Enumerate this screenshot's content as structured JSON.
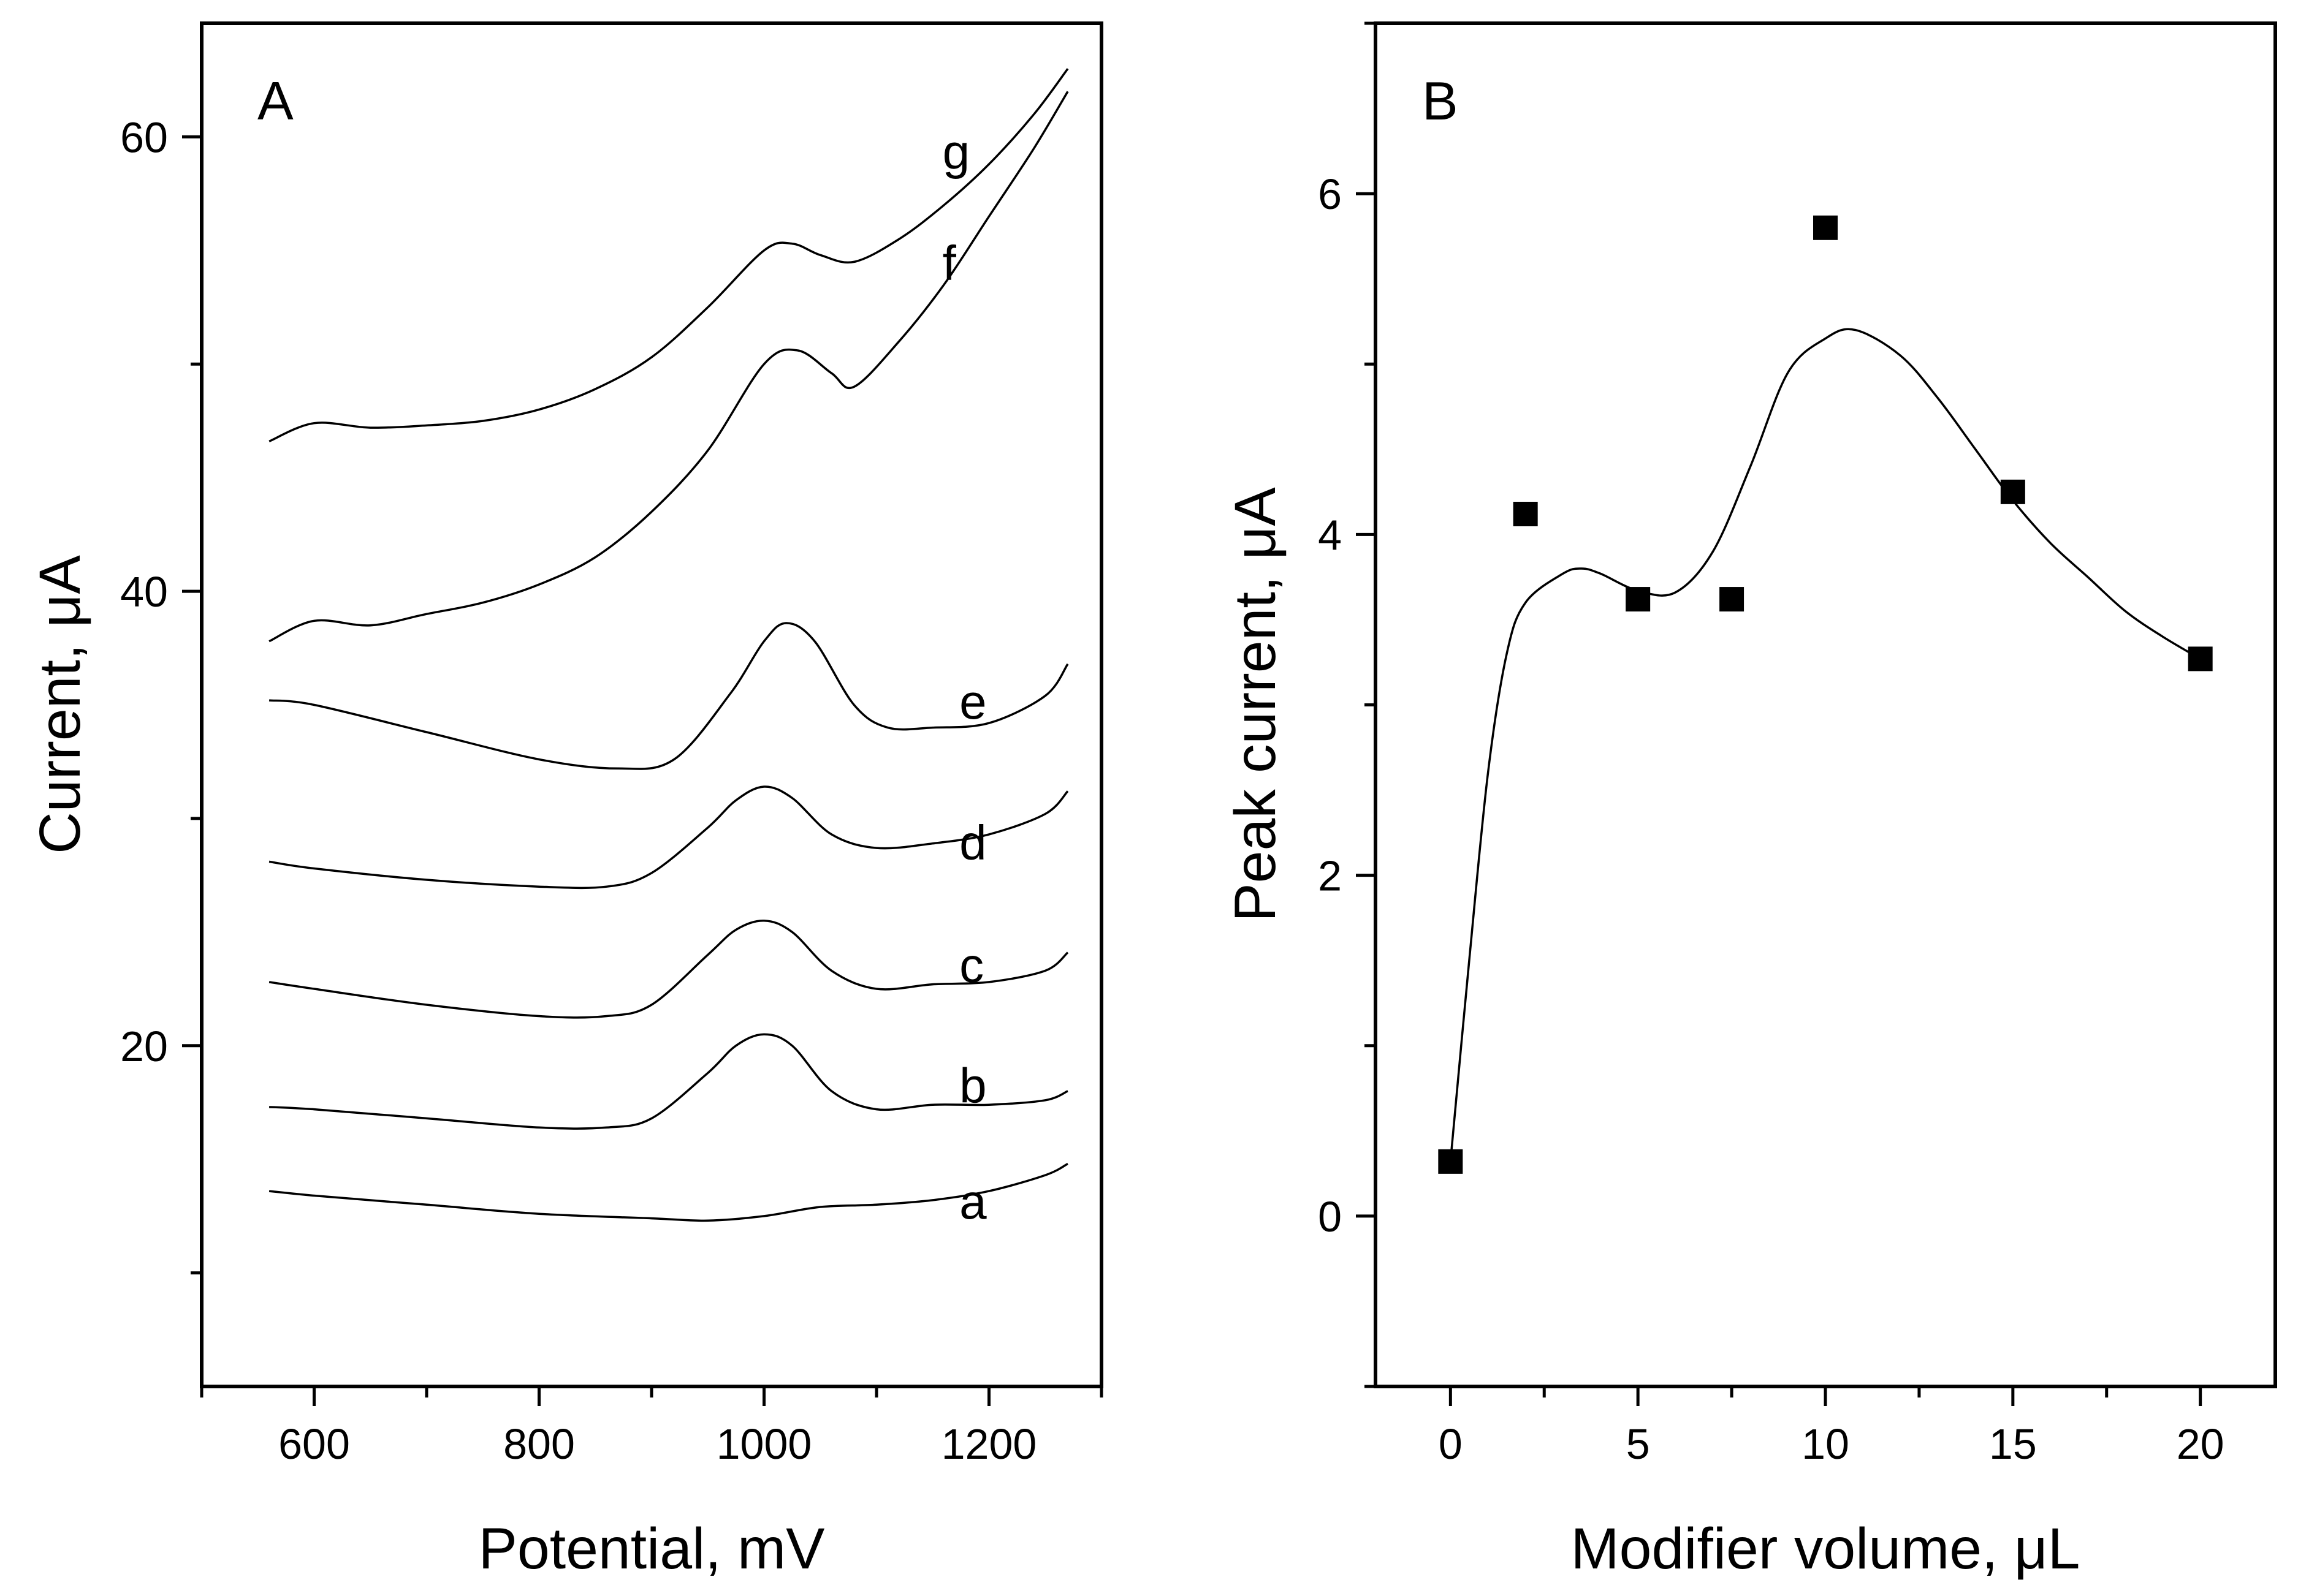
{
  "chart_data": [
    {
      "panel": "A",
      "type": "line",
      "xlabel": "Potential, mV",
      "ylabel": "Current, μA",
      "xlim": [
        500,
        1300
      ],
      "ylim": [
        5,
        65
      ],
      "xticks": [
        600,
        800,
        1000,
        1200
      ],
      "yticks": [
        20,
        40,
        60
      ],
      "series": [
        {
          "name": "a",
          "x": [
            560,
            600,
            700,
            800,
            900,
            950,
            1000,
            1050,
            1100,
            1150,
            1200,
            1250,
            1270
          ],
          "y": [
            13.6,
            13.4,
            13.0,
            12.6,
            12.4,
            12.3,
            12.5,
            12.9,
            13.0,
            13.2,
            13.6,
            14.3,
            14.8
          ]
        },
        {
          "name": "b",
          "x": [
            560,
            600,
            700,
            800,
            860,
            900,
            950,
            975,
            1000,
            1025,
            1060,
            1100,
            1150,
            1200,
            1250,
            1270
          ],
          "y": [
            17.3,
            17.2,
            16.8,
            16.4,
            16.4,
            16.8,
            18.8,
            20.0,
            20.5,
            20.0,
            18.0,
            17.2,
            17.4,
            17.4,
            17.6,
            18.0
          ]
        },
        {
          "name": "c",
          "x": [
            560,
            600,
            700,
            800,
            860,
            900,
            950,
            975,
            1000,
            1025,
            1060,
            1100,
            1150,
            1200,
            1250,
            1270
          ],
          "y": [
            22.8,
            22.5,
            21.8,
            21.3,
            21.3,
            21.8,
            24.0,
            25.1,
            25.5,
            25.0,
            23.3,
            22.5,
            22.7,
            22.8,
            23.3,
            24.1
          ]
        },
        {
          "name": "d",
          "x": [
            560,
            600,
            700,
            800,
            860,
            900,
            950,
            975,
            1000,
            1025,
            1060,
            1100,
            1150,
            1200,
            1250,
            1270
          ],
          "y": [
            28.1,
            27.8,
            27.3,
            27.0,
            27.0,
            27.6,
            29.6,
            30.8,
            31.4,
            30.9,
            29.3,
            28.7,
            28.9,
            29.3,
            30.2,
            31.2
          ]
        },
        {
          "name": "e",
          "x": [
            560,
            600,
            700,
            800,
            870,
            920,
            970,
            1000,
            1020,
            1045,
            1080,
            1110,
            1150,
            1200,
            1250,
            1270
          ],
          "y": [
            35.2,
            35.0,
            33.8,
            32.6,
            32.2,
            32.6,
            35.5,
            37.8,
            38.6,
            37.8,
            35.0,
            34.0,
            34.0,
            34.2,
            35.4,
            36.8
          ]
        },
        {
          "name": "f",
          "x": [
            560,
            600,
            650,
            700,
            750,
            800,
            850,
            900,
            950,
            1000,
            1030,
            1060,
            1080,
            1120,
            1160,
            1200,
            1240,
            1270
          ],
          "y": [
            37.8,
            38.7,
            38.5,
            39.0,
            39.5,
            40.3,
            41.5,
            43.5,
            46.2,
            50.0,
            50.6,
            49.6,
            49.0,
            51.0,
            53.5,
            56.5,
            59.5,
            62.0
          ]
        },
        {
          "name": "g",
          "x": [
            560,
            600,
            650,
            700,
            750,
            800,
            850,
            900,
            950,
            1000,
            1025,
            1050,
            1080,
            1120,
            1160,
            1200,
            1240,
            1270
          ],
          "y": [
            46.6,
            47.4,
            47.2,
            47.3,
            47.5,
            48.0,
            48.9,
            50.3,
            52.5,
            55.0,
            55.3,
            54.8,
            54.5,
            55.5,
            57.0,
            58.8,
            61.0,
            63.0
          ]
        }
      ]
    },
    {
      "panel": "B",
      "type": "scatter",
      "xlabel": "Modifier volume, μL",
      "ylabel": "Peak current, μA",
      "xlim": [
        -2,
        22
      ],
      "ylim": [
        -1,
        7
      ],
      "xticks": [
        0,
        5,
        10,
        15,
        20
      ],
      "yticks": [
        0,
        2,
        4,
        6
      ],
      "points": {
        "x": [
          0,
          2,
          5,
          7.5,
          10,
          15,
          20
        ],
        "y": [
          0.32,
          4.12,
          3.62,
          3.62,
          5.8,
          4.25,
          3.27
        ]
      },
      "fit_curve": {
        "x": [
          0,
          0.5,
          1,
          1.5,
          2,
          3,
          3.5,
          4,
          5,
          6,
          7,
          8,
          9,
          10,
          10.8,
          12,
          13,
          14,
          15,
          16,
          17,
          18,
          19,
          20
        ],
        "y": [
          0.32,
          1.5,
          2.6,
          3.3,
          3.6,
          3.77,
          3.8,
          3.77,
          3.67,
          3.66,
          3.9,
          4.4,
          4.95,
          5.15,
          5.2,
          5.05,
          4.8,
          4.5,
          4.2,
          3.95,
          3.75,
          3.55,
          3.4,
          3.27
        ]
      }
    }
  ]
}
